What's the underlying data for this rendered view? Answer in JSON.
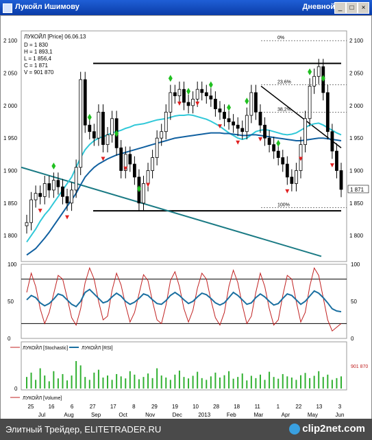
{
  "window": {
    "title": "Лукойл Ишимову",
    "interval": "Дневной",
    "minimize": "_",
    "maximize": "□",
    "close": "×"
  },
  "footer": {
    "text": "Элитный Трейдер, ELITETRADER.RU",
    "logo": "clip2net.com"
  },
  "colors": {
    "price": "#000000",
    "ma_long": "#1060a0",
    "ma_short": "#30c8d8",
    "trend_teal": "#1a7a84",
    "fractal_up": "#20c020",
    "fractal_down": "#e02020",
    "stochastic": "#c02020",
    "rsi": "#1a6fa0",
    "volume": "#30b030"
  },
  "chart_data": [
    {
      "type": "candlestick",
      "title": "ЛУКОЙЛ [Price] 06.06.13",
      "ohlc_legend": [
        "D = 1 830",
        "H = 1 893,1",
        "L = 1 856,4",
        "C = 1 871",
        "V = 901 870"
      ],
      "ylim": [
        1760,
        2115
      ],
      "y_ticks": [
        1800,
        1850,
        1900,
        1950,
        2000,
        2050,
        2100
      ],
      "y_tick_labels": [
        "1 800",
        "1 850",
        "1 900",
        "1 950",
        "2 000",
        "2 050",
        "2 100"
      ],
      "last_price_label": "1 871",
      "fib_levels": [
        {
          "label": "0%",
          "value": 2100
        },
        {
          "label": "23,6%",
          "value": 2032
        },
        {
          "label": "38,2%",
          "value": 1990
        },
        {
          "label": "100%",
          "value": 1843
        }
      ],
      "support_resistance": [
        2065,
        1838
      ],
      "close": [
        1820,
        1855,
        1865,
        1860,
        1880,
        1870,
        1885,
        1875,
        1860,
        1850,
        1870,
        1905,
        2040,
        1970,
        1960,
        1950,
        1990,
        1940,
        1955,
        1980,
        1935,
        1900,
        1925,
        1910,
        1890,
        1850,
        1880,
        1900,
        1920,
        1950,
        1960,
        1990,
        2020,
        2015,
        2025,
        2005,
        2000,
        2010,
        2025,
        2020,
        2015,
        2010,
        1995,
        1990,
        1980,
        1975,
        1970,
        1965,
        1960,
        1985,
        2020,
        1990,
        1970,
        1950,
        1940,
        1930,
        1920,
        1910,
        1890,
        1880,
        1900,
        1940,
        1980,
        2030,
        2045,
        2060,
        2020,
        1960,
        1930,
        1900,
        1871
      ],
      "ma_long": [
        1770,
        1775,
        1780,
        1788,
        1796,
        1805,
        1815,
        1825,
        1835,
        1845,
        1855,
        1865,
        1878,
        1890,
        1898,
        1905,
        1910,
        1914,
        1918,
        1921,
        1924,
        1926,
        1928,
        1930,
        1932,
        1934,
        1936,
        1938,
        1940,
        1942,
        1944,
        1946,
        1948,
        1950,
        1951,
        1952,
        1953,
        1954,
        1955,
        1956,
        1957,
        1958,
        1958,
        1958,
        1957,
        1957,
        1956,
        1955,
        1954,
        1954,
        1955,
        1955,
        1954,
        1953,
        1952,
        1951,
        1950,
        1949,
        1948,
        1947,
        1946,
        1946,
        1947,
        1948,
        1949,
        1950,
        1950,
        1949,
        1948,
        1947,
        1946
      ],
      "ma_short": [
        1790,
        1800,
        1810,
        1822,
        1832,
        1840,
        1850,
        1860,
        1870,
        1880,
        1890,
        1905,
        1920,
        1932,
        1940,
        1946,
        1950,
        1952,
        1955,
        1958,
        1960,
        1962,
        1965,
        1967,
        1970,
        1971,
        1972,
        1974,
        1976,
        1978,
        1979,
        1980,
        1982,
        1984,
        1985,
        1985,
        1986,
        1985,
        1983,
        1981,
        1979,
        1976,
        1972,
        1968,
        1963,
        1958,
        1954,
        1950,
        1948,
        1950,
        1955,
        1960,
        1962,
        1963,
        1962,
        1960,
        1958,
        1956,
        1955,
        1956,
        1958,
        1962,
        1966,
        1970,
        1972,
        1973,
        1970,
        1966,
        1962,
        1958,
        1955
      ],
      "fractals_up_idx": [
        6,
        14,
        20,
        25,
        32,
        36,
        41,
        45,
        49,
        56,
        63,
        66
      ],
      "fractals_down_idx": [
        3,
        9,
        17,
        22,
        27,
        34,
        38,
        43,
        47,
        52,
        58,
        61,
        68
      ]
    },
    {
      "type": "line",
      "series": [
        {
          "name": "ЛУКОЙЛ [Stochastic]",
          "values": [
            62,
            88,
            70,
            40,
            20,
            35,
            60,
            85,
            80,
            55,
            28,
            18,
            40,
            75,
            95,
            80,
            50,
            25,
            30,
            65,
            88,
            72,
            45,
            22,
            35,
            60,
            86,
            78,
            50,
            25,
            20,
            45,
            78,
            90,
            70,
            40,
            22,
            38,
            68,
            88,
            80,
            52,
            28,
            18,
            35,
            70,
            92,
            75,
            45,
            20,
            30,
            62,
            88,
            70,
            40,
            18,
            25,
            58,
            85,
            80,
            50,
            22,
            35,
            70,
            95,
            85,
            55,
            25,
            10,
            15,
            20
          ]
        },
        {
          "name": "ЛУКОЙЛ [RSI]",
          "values": [
            52,
            58,
            55,
            48,
            44,
            47,
            53,
            60,
            58,
            52,
            46,
            43,
            50,
            62,
            66,
            60,
            54,
            48,
            50,
            56,
            61,
            57,
            50,
            46,
            49,
            54,
            60,
            58,
            52,
            47,
            46,
            51,
            58,
            62,
            58,
            52,
            47,
            50,
            56,
            61,
            59,
            54,
            48,
            45,
            48,
            55,
            62,
            58,
            52,
            46,
            48,
            55,
            60,
            56,
            50,
            45,
            47,
            54,
            60,
            58,
            52,
            46,
            50,
            57,
            64,
            61,
            55,
            48,
            40,
            37,
            36
          ]
        }
      ],
      "ylim": [
        0,
        100
      ],
      "y_ticks": [
        0,
        50,
        100
      ],
      "levels": [
        20,
        80
      ]
    },
    {
      "type": "bar",
      "series": [
        {
          "name": "ЛУКОЙЛ [Volume]",
          "values": [
            40,
            55,
            30,
            70,
            45,
            25,
            60,
            35,
            50,
            28,
            45,
            95,
            80,
            40,
            30,
            55,
            65,
            38,
            45,
            30,
            50,
            42,
            35,
            60,
            48,
            32,
            40,
            52,
            36,
            70,
            45,
            38,
            30,
            48,
            62,
            40,
            35,
            44,
            58,
            36,
            30,
            42,
            55,
            38,
            46,
            60,
            34,
            40,
            52,
            28,
            44,
            36,
            48,
            30,
            58,
            40,
            34,
            50,
            42,
            38,
            30,
            46,
            54,
            36,
            44,
            60,
            40,
            48,
            30,
            36,
            42
          ]
        }
      ],
      "y_ticks": [
        0
      ],
      "last_value_label": "901 870"
    }
  ],
  "x_axis": {
    "day_labels": [
      "25",
      "16",
      "6",
      "27",
      "17",
      "8",
      "29",
      "19",
      "10",
      "28",
      "18",
      "11",
      "1",
      "22",
      "13",
      "3"
    ],
    "month_labels": [
      "Jul",
      "Aug",
      "Sep",
      "Oct",
      "Nov",
      "Dec",
      "2013",
      "Feb",
      "Mar",
      "Apr",
      "May",
      "Jun"
    ]
  }
}
